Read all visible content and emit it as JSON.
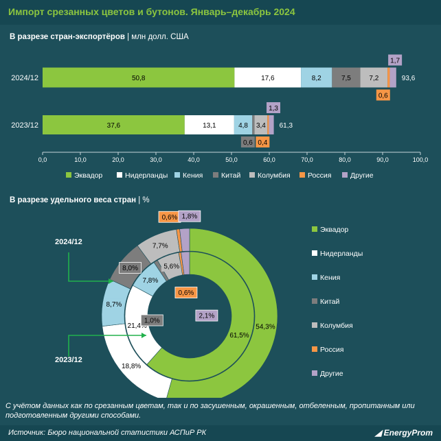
{
  "title": "Импорт срезанных цветов и бутонов. Январь–декабрь 2024",
  "section1": {
    "title": "В разрезе стран-экспортёров",
    "unit": "| млн долл. США"
  },
  "section2": {
    "title": "В разрезе удельного веса стран",
    "unit": "| %"
  },
  "footnote": "С учётом данных как по срезанным цветам, так и по засушенным, окрашенным, отбеленным, пропитанным или подготовленным другими способами.",
  "source": "Источник: Бюро национальной статистики АСПиР РК",
  "brand": "EnergyProm",
  "chart_data": [
    {
      "type": "bar",
      "orientation": "horizontal",
      "stacked": true,
      "categories": [
        "2024/12",
        "2023/12"
      ],
      "series": [
        {
          "name": "Эквадор",
          "color": "#8cc63f",
          "values": [
            50.8,
            37.6
          ],
          "labels": [
            "50,8",
            "37,6"
          ]
        },
        {
          "name": "Нидерланды",
          "color": "#ffffff",
          "values": [
            17.6,
            13.1
          ],
          "labels": [
            "17,6",
            "13,1"
          ]
        },
        {
          "name": "Кения",
          "color": "#9fd3e4",
          "values": [
            8.2,
            4.8
          ],
          "labels": [
            "8,2",
            "4,8"
          ]
        },
        {
          "name": "Китай",
          "color": "#7d7d7d",
          "values": [
            7.5,
            0.6
          ],
          "labels": [
            "7,5",
            "0,6"
          ]
        },
        {
          "name": "Колумбия",
          "color": "#bdbdbd",
          "values": [
            7.2,
            3.4
          ],
          "labels": [
            "7,2",
            "3,4"
          ]
        },
        {
          "name": "Россия",
          "color": "#f79646",
          "values": [
            0.6,
            0.4
          ],
          "labels": [
            "0,6",
            "0,4"
          ]
        },
        {
          "name": "Другие",
          "color": "#b3a2c7",
          "values": [
            1.7,
            1.3
          ],
          "labels": [
            "1,7",
            "1,3"
          ]
        }
      ],
      "totals": [
        "93,6",
        "61,3"
      ],
      "xlim": [
        0,
        100
      ],
      "xticks": [
        "0,0",
        "10,0",
        "20,0",
        "30,0",
        "40,0",
        "50,0",
        "60,0",
        "70,0",
        "80,0",
        "90,0",
        "100,0"
      ],
      "legend": "bottom"
    },
    {
      "type": "pie",
      "variant": "donut",
      "rings": [
        {
          "name": "2024/12",
          "position": "outer",
          "values": [
            54.3,
            18.8,
            8.7,
            8.0,
            7.7,
            0.6,
            1.8
          ],
          "labels": [
            "54,3%",
            "18,8%",
            "8,7%",
            "8,0%",
            "7,7%",
            "0,6%",
            "1,8%"
          ]
        },
        {
          "name": "2023/12",
          "position": "inner",
          "values": [
            61.5,
            21.4,
            7.8,
            1.0,
            5.6,
            0.6,
            2.1
          ],
          "labels": [
            "61,5%",
            "21,4%",
            "7,8%",
            "1,0%",
            "5,6%",
            "0,6%",
            "2,1%"
          ]
        }
      ],
      "categories": [
        "Эквадор",
        "Нидерланды",
        "Кения",
        "Китай",
        "Колумбия",
        "Россия",
        "Другие"
      ],
      "colors": [
        "#8cc63f",
        "#ffffff",
        "#9fd3e4",
        "#7d7d7d",
        "#bdbdbd",
        "#f79646",
        "#b3a2c7"
      ],
      "legend": "right"
    }
  ]
}
